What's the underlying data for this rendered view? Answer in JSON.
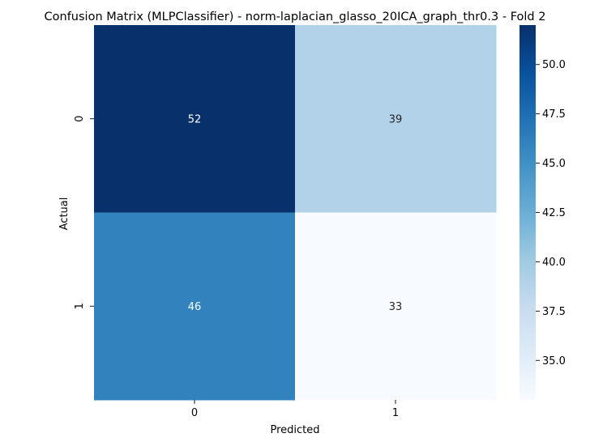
{
  "chart_data": {
    "type": "heatmap",
    "title": "Confusion Matrix (MLPClassifier) - norm-laplacian_glasso_20ICA_graph_thr0.3 - Fold 2",
    "xlabel": "Predicted",
    "ylabel": "Actual",
    "x_categories": [
      "0",
      "1"
    ],
    "y_categories": [
      "0",
      "1"
    ],
    "values": [
      [
        52,
        39
      ],
      [
        46,
        33
      ]
    ],
    "colormap": "Blues",
    "vmin": 33,
    "vmax": 52,
    "colorbar_ticks": [
      "35.0",
      "37.5",
      "40.0",
      "42.5",
      "45.0",
      "47.5",
      "50.0"
    ],
    "colorbar_tick_values": [
      35.0,
      37.5,
      40.0,
      42.5,
      45.0,
      47.5,
      50.0
    ],
    "grid": false
  }
}
